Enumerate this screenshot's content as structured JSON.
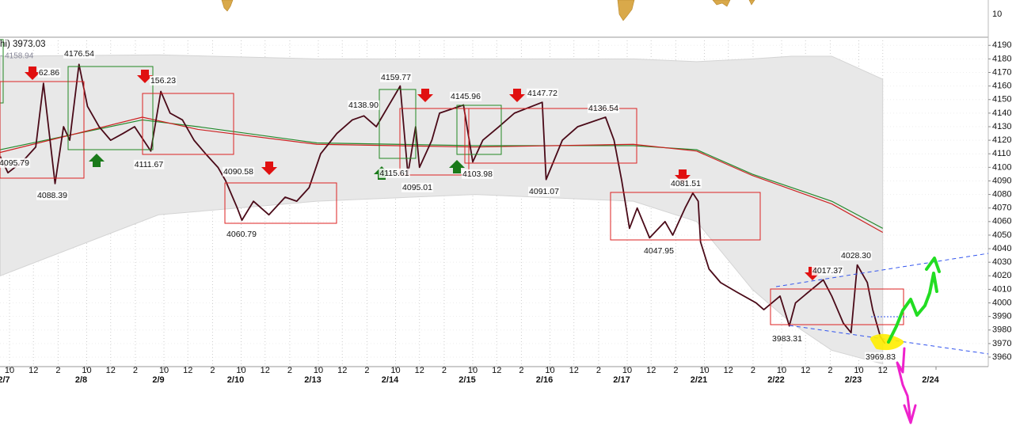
{
  "chart_data": {
    "type": "line",
    "top_axis_label": "10",
    "legend_text": [
      "hi) 3973.03",
      "- 4158.94"
    ],
    "xlim": [
      -0.12,
      12.68
    ],
    "ylim": [
      3953,
      4196
    ],
    "yticks": [
      3960,
      3970,
      3980,
      3990,
      4000,
      4010,
      4020,
      4030,
      4040,
      4050,
      4060,
      4070,
      4080,
      4090,
      4100,
      4110,
      4120,
      4130,
      4140,
      4150,
      4160,
      4170,
      4180,
      4190
    ],
    "xticks": [
      {
        "value": 0,
        "label": "10"
      },
      {
        "value": 0.31,
        "label": "12"
      },
      {
        "value": 0.63,
        "label": "2"
      },
      {
        "value": 1,
        "label": "10"
      },
      {
        "value": 1.31,
        "label": "12"
      },
      {
        "value": 1.63,
        "label": "2"
      },
      {
        "value": 2,
        "label": "10"
      },
      {
        "value": 2.31,
        "label": "12"
      },
      {
        "value": 2.63,
        "label": "2"
      },
      {
        "value": 3,
        "label": "10"
      },
      {
        "value": 3.31,
        "label": "12"
      },
      {
        "value": 3.63,
        "label": "2"
      },
      {
        "value": 4,
        "label": "10"
      },
      {
        "value": 4.31,
        "label": "12"
      },
      {
        "value": 4.63,
        "label": "2"
      },
      {
        "value": 5,
        "label": "10"
      },
      {
        "value": 5.31,
        "label": "12"
      },
      {
        "value": 5.63,
        "label": "2"
      },
      {
        "value": 6,
        "label": "10"
      },
      {
        "value": 6.31,
        "label": "12"
      },
      {
        "value": 6.63,
        "label": "2"
      },
      {
        "value": 7,
        "label": "10"
      },
      {
        "value": 7.31,
        "label": "12"
      },
      {
        "value": 7.63,
        "label": "2"
      },
      {
        "value": 8,
        "label": "10"
      },
      {
        "value": 8.31,
        "label": "12"
      },
      {
        "value": 8.63,
        "label": "2"
      },
      {
        "value": 9,
        "label": "10"
      },
      {
        "value": 9.31,
        "label": "12"
      },
      {
        "value": 9.63,
        "label": "2"
      },
      {
        "value": 10,
        "label": "10"
      },
      {
        "value": 10.31,
        "label": "12"
      },
      {
        "value": 10.63,
        "label": "2"
      },
      {
        "value": 11,
        "label": "10"
      },
      {
        "value": 11.31,
        "label": "12"
      }
    ],
    "date_ticks": [
      {
        "value": 0,
        "label": "2/7"
      },
      {
        "value": 1,
        "label": "2/8"
      },
      {
        "value": 2,
        "label": "2/9"
      },
      {
        "value": 3,
        "label": "2/10"
      },
      {
        "value": 4,
        "label": "2/13"
      },
      {
        "value": 5,
        "label": "2/14"
      },
      {
        "value": 6,
        "label": "2/15"
      },
      {
        "value": 7,
        "label": "2/16"
      },
      {
        "value": 8,
        "label": "2/17"
      },
      {
        "value": 9,
        "label": "2/21"
      },
      {
        "value": 10,
        "label": "2/22"
      },
      {
        "value": 11,
        "label": "2/23"
      },
      {
        "value": 12,
        "label": "2/24"
      }
    ],
    "band": {
      "color": "#e8e8e8",
      "x": [
        -0.12,
        1.93,
        3.98,
        6.03,
        8.08,
        8.9,
        9.62,
        10.13,
        10.65,
        11.31
      ],
      "upper": [
        4182,
        4183,
        4180,
        4180,
        4180,
        4178,
        4180,
        4182,
        4182,
        4165
      ],
      "lower": [
        4020,
        4065,
        4075,
        4080,
        4075,
        4060,
        4010,
        3985,
        3965,
        3955
      ]
    },
    "series": [
      {
        "color": "#22882a",
        "x": [
          -0.12,
          1.72,
          2.44,
          3.98,
          6.03,
          8.08,
          8.9,
          9.62,
          10.65,
          11.31
        ],
        "values": [
          4113,
          4135,
          4130,
          4118,
          4116,
          4116,
          4113,
          4095,
          4075,
          4055
        ]
      },
      {
        "color": "#cc2222",
        "x": [
          -0.12,
          1.72,
          2.44,
          3.98,
          6.03,
          8.08,
          8.9,
          9.62,
          10.65,
          11.31
        ],
        "values": [
          4111,
          4137,
          4128,
          4117,
          4115,
          4117,
          4112,
          4094,
          4073,
          4052
        ]
      },
      {
        "color": "#4a0a18",
        "x": [
          -0.12,
          -0.02,
          0.18,
          0.34,
          0.44,
          0.59,
          0.7,
          0.78,
          0.9,
          1.01,
          1.16,
          1.31,
          1.47,
          1.62,
          1.83,
          1.96,
          2.08,
          2.24,
          2.39,
          2.54,
          2.7,
          2.8,
          2.95,
          3.01,
          3.16,
          3.36,
          3.57,
          3.72,
          3.88,
          4.03,
          4.24,
          4.44,
          4.59,
          4.75,
          5.06,
          5.16,
          5.26,
          5.31,
          5.47,
          5.57,
          5.88,
          6.0,
          6.13,
          6.34,
          6.54,
          6.9,
          6.95,
          7.16,
          7.36,
          7.72,
          7.83,
          7.93,
          8.03,
          8.13,
          8.29,
          8.49,
          8.59,
          8.75,
          8.85,
          8.92,
          8.95,
          9.06,
          9.21,
          9.42,
          9.67,
          9.77,
          9.98,
          10.1,
          10.18,
          10.39,
          10.54,
          10.65,
          10.8,
          10.9,
          10.98,
          11.11,
          11.18,
          11.28,
          11.34
        ],
        "values": [
          4108,
          4096,
          4105,
          4115,
          4162,
          4088,
          4130,
          4120,
          4176,
          4145,
          4130,
          4120,
          4125,
          4130,
          4112,
          4156,
          4140,
          4135,
          4120,
          4110,
          4100,
          4090,
          4070,
          4061,
          4075,
          4065,
          4078,
          4075,
          4085,
          4110,
          4125,
          4135,
          4138,
          4130,
          4160,
          4095,
          4130,
          4100,
          4120,
          4140,
          4146,
          4104,
          4120,
          4130,
          4140,
          4148,
          4091,
          4120,
          4130,
          4137,
          4120,
          4090,
          4055,
          4070,
          4048,
          4060,
          4050,
          4070,
          4081,
          4075,
          4045,
          4025,
          4015,
          4008,
          4000,
          3995,
          4005,
          3983,
          4000,
          4010,
          4017,
          4005,
          3985,
          3978,
          4028,
          4015,
          3995,
          3975,
          3970
        ]
      }
    ],
    "annotations": [
      "4095.79",
      "4088.39",
      "4176.54",
      "62.86",
      "156.23",
      "4111.67",
      "4090.58",
      "4060.79",
      "4138.90",
      "4159.77",
      "4115.61",
      "4095.01",
      "4103.98",
      "4145.96",
      "4147.72",
      "4136.54",
      "4091.07",
      "4081.51",
      "4047.95",
      "4017.37",
      "4028.30",
      "3983.31",
      "3969.83"
    ]
  }
}
